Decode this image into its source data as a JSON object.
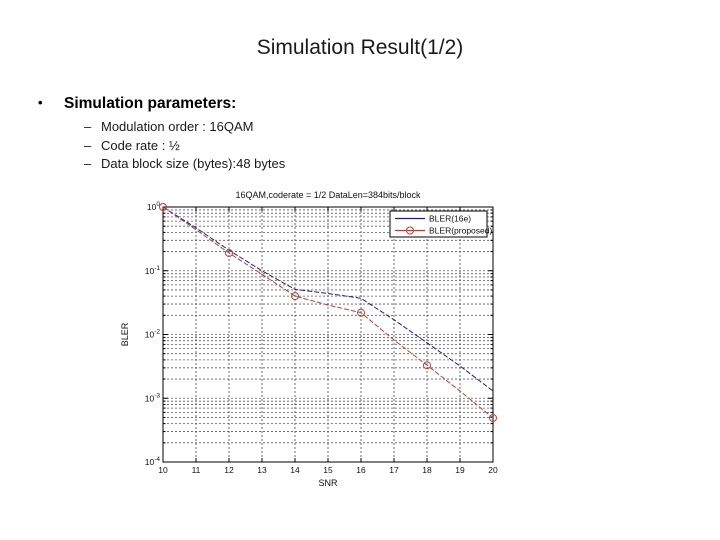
{
  "slide": {
    "title": "Simulation Result(1/2)",
    "bullet": {
      "marker": "•",
      "label": "Simulation parameters:",
      "sub_items": [
        {
          "marker": "–",
          "text": "Modulation order : 16QAM"
        },
        {
          "marker": "–",
          "text": "Code rate : ½"
        },
        {
          "marker": "–",
          "text": "Data block size (bytes):48 bytes"
        }
      ]
    }
  },
  "chart_data": {
    "type": "line",
    "title": "16QAM,coderate = 1/2 DataLen=384bits/block",
    "xlabel": "SNR",
    "ylabel": "BLER",
    "y_scale": "log10",
    "xlim": [
      10,
      20
    ],
    "ylim": [
      0.0001,
      1
    ],
    "x_ticks": [
      10,
      11,
      12,
      13,
      14,
      15,
      16,
      17,
      18,
      19,
      20
    ],
    "y_tick_exponents": [
      0,
      -1,
      -2,
      -3,
      -4
    ],
    "grid": "dashed, log minor horizontal lines + vertical lines at each SNR",
    "legend_position": "upper right",
    "x": [
      10,
      11,
      12,
      13,
      14,
      15,
      16,
      17,
      18,
      19,
      20
    ],
    "series": [
      {
        "name": "BLER(16e)",
        "color": "#20207a",
        "marker": "none",
        "values": [
          1.0,
          0.47,
          0.21,
          0.1,
          0.051,
          0.044,
          0.037,
          0.017,
          0.0074,
          0.0032,
          0.0013
        ]
      },
      {
        "name": "BLER(proposed)",
        "color": "#b2433c",
        "marker": "circle",
        "marker_x": [
          10,
          12,
          14,
          16,
          18,
          20
        ],
        "values": [
          1.0,
          0.44,
          0.19,
          0.088,
          0.04,
          0.029,
          0.022,
          0.0082,
          0.0033,
          0.0013,
          0.00049
        ]
      }
    ]
  }
}
